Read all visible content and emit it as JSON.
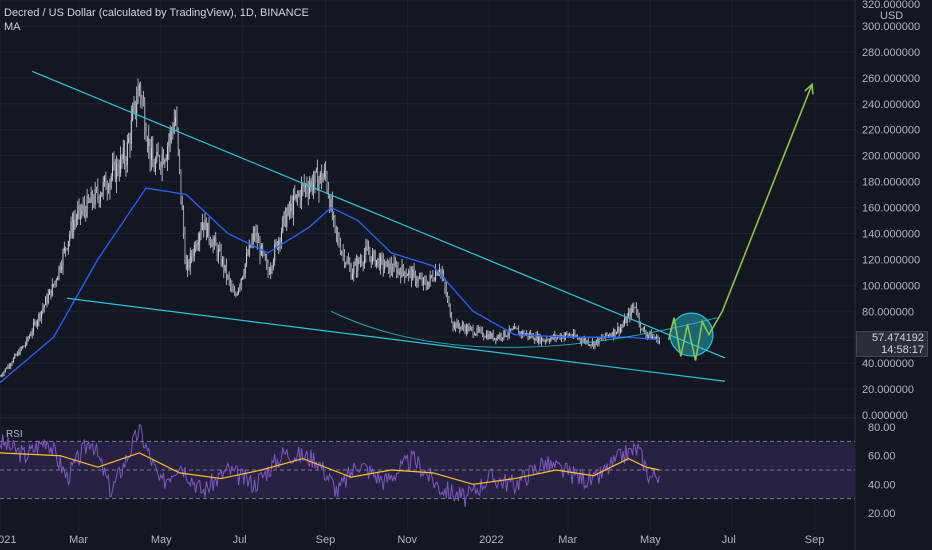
{
  "header": {
    "title": "Decred / US Dollar (calculated by TradingView), 1D, BINANCE",
    "indicator": "MA"
  },
  "price_axis": {
    "unit": "USD",
    "labels": [
      "320.000000",
      "300.000000",
      "280.000000",
      "260.000000",
      "240.000000",
      "220.000000",
      "200.000000",
      "180.000000",
      "160.000000",
      "140.000000",
      "120.000000",
      "100.000000",
      "80.000000",
      "60.000000",
      "40.000000",
      "20.000000",
      "0.000000"
    ]
  },
  "last_price": {
    "value": "57.474192",
    "countdown": "14:58:17"
  },
  "rsi": {
    "title": "RSI",
    "labels": [
      "80.00",
      "60.00",
      "40.00",
      "20.00"
    ]
  },
  "time_axis": [
    "2021",
    "Mar",
    "May",
    "Jul",
    "Sep",
    "Nov",
    "2022",
    "Mar",
    "May",
    "Jul",
    "Sep"
  ],
  "colors": {
    "background": "#131722",
    "candle": "#d1d4dc",
    "ma": "#2962ff",
    "trendline": "#26c6da",
    "projection": "#8bc34a",
    "rsi_line": "#7e57c2",
    "rsi_ma": "#fbc02d",
    "rsi_band": "#2a2346"
  },
  "chart_data": {
    "type": "candlestick",
    "title": "Decred / US Dollar (calculated by TradingView), 1D, BINANCE",
    "ylabel": "USD",
    "ylim": [
      0,
      320
    ],
    "x_range": [
      "2021-01-01",
      "2022-10-01"
    ],
    "price_path": [
      {
        "date": "2021-01-01",
        "close": 30
      },
      {
        "date": "2021-01-20",
        "close": 55
      },
      {
        "date": "2021-02-10",
        "close": 100
      },
      {
        "date": "2021-02-25",
        "close": 150
      },
      {
        "date": "2021-03-15",
        "close": 170
      },
      {
        "date": "2021-04-05",
        "close": 200
      },
      {
        "date": "2021-04-15",
        "close": 255
      },
      {
        "date": "2021-04-25",
        "close": 190
      },
      {
        "date": "2021-05-05",
        "close": 205
      },
      {
        "date": "2021-05-12",
        "close": 230
      },
      {
        "date": "2021-05-20",
        "close": 110
      },
      {
        "date": "2021-06-01",
        "close": 150
      },
      {
        "date": "2021-06-15",
        "close": 120
      },
      {
        "date": "2021-06-25",
        "close": 90
      },
      {
        "date": "2021-07-10",
        "close": 140
      },
      {
        "date": "2021-07-20",
        "close": 110
      },
      {
        "date": "2021-08-01",
        "close": 150
      },
      {
        "date": "2021-08-15",
        "close": 175
      },
      {
        "date": "2021-09-01",
        "close": 185
      },
      {
        "date": "2021-09-08",
        "close": 140
      },
      {
        "date": "2021-09-20",
        "close": 110
      },
      {
        "date": "2021-10-01",
        "close": 125
      },
      {
        "date": "2021-10-15",
        "close": 115
      },
      {
        "date": "2021-11-01",
        "close": 110
      },
      {
        "date": "2021-11-15",
        "close": 100
      },
      {
        "date": "2021-11-25",
        "close": 115
      },
      {
        "date": "2021-12-05",
        "close": 70
      },
      {
        "date": "2021-12-20",
        "close": 65
      },
      {
        "date": "2022-01-05",
        "close": 60
      },
      {
        "date": "2022-01-20",
        "close": 65
      },
      {
        "date": "2022-02-10",
        "close": 58
      },
      {
        "date": "2022-03-01",
        "close": 62
      },
      {
        "date": "2022-03-20",
        "close": 55
      },
      {
        "date": "2022-04-10",
        "close": 68
      },
      {
        "date": "2022-04-20",
        "close": 85
      },
      {
        "date": "2022-04-25",
        "close": 65
      },
      {
        "date": "2022-05-08",
        "close": 57.47
      }
    ],
    "moving_average": [
      {
        "date": "2021-01-01",
        "value": 25
      },
      {
        "date": "2021-02-10",
        "value": 60
      },
      {
        "date": "2021-03-15",
        "value": 120
      },
      {
        "date": "2021-04-20",
        "value": 175
      },
      {
        "date": "2021-05-20",
        "value": 170
      },
      {
        "date": "2021-06-20",
        "value": 140
      },
      {
        "date": "2021-07-20",
        "value": 125
      },
      {
        "date": "2021-08-20",
        "value": 145
      },
      {
        "date": "2021-09-05",
        "value": 160
      },
      {
        "date": "2021-09-25",
        "value": 150
      },
      {
        "date": "2021-10-20",
        "value": 125
      },
      {
        "date": "2021-11-20",
        "value": 115
      },
      {
        "date": "2021-12-20",
        "value": 80
      },
      {
        "date": "2022-01-20",
        "value": 62
      },
      {
        "date": "2022-03-01",
        "value": 60
      },
      {
        "date": "2022-04-15",
        "value": 60
      },
      {
        "date": "2022-05-08",
        "value": 58
      }
    ],
    "annotations": [
      {
        "type": "trendline",
        "from": {
          "date": "2021-01-25",
          "price": 265
        },
        "to": {
          "date": "2022-06-26",
          "price": 44
        }
      },
      {
        "type": "trendline",
        "from": {
          "date": "2021-02-20",
          "price": 90
        },
        "to": {
          "date": "2022-06-26",
          "price": 26
        }
      },
      {
        "type": "curve",
        "from": {
          "date": "2021-09-05",
          "price": 80
        },
        "via": {
          "date": "2021-12-20",
          "price": 50
        },
        "to": {
          "date": "2022-06-20",
          "price": 75
        }
      },
      {
        "type": "circle",
        "center": {
          "date": "2022-06-01",
          "price": 62
        },
        "radius_days": 16
      },
      {
        "type": "arrow",
        "points": [
          {
            "date": "2022-05-15",
            "price": 58
          },
          {
            "date": "2022-05-19",
            "price": 75
          },
          {
            "date": "2022-05-24",
            "price": 45
          },
          {
            "date": "2022-05-29",
            "price": 70
          },
          {
            "date": "2022-06-04",
            "price": 42
          },
          {
            "date": "2022-06-09",
            "price": 72
          },
          {
            "date": "2022-06-14",
            "price": 62
          },
          {
            "date": "2022-06-24",
            "price": 80
          },
          {
            "date": "2022-08-30",
            "price": 255
          }
        ]
      }
    ],
    "rsi": {
      "ylim": [
        15,
        85
      ],
      "levels": [
        70,
        50,
        30
      ],
      "path": [
        {
          "date": "2021-01-01",
          "value": 70
        },
        {
          "date": "2021-01-20",
          "value": 60
        },
        {
          "date": "2021-02-05",
          "value": 72
        },
        {
          "date": "2021-02-20",
          "value": 45
        },
        {
          "date": "2021-03-10",
          "value": 72
        },
        {
          "date": "2021-03-25",
          "value": 35
        },
        {
          "date": "2021-04-15",
          "value": 78
        },
        {
          "date": "2021-05-01",
          "value": 40
        },
        {
          "date": "2021-05-15",
          "value": 55
        },
        {
          "date": "2021-06-01",
          "value": 35
        },
        {
          "date": "2021-06-20",
          "value": 50
        },
        {
          "date": "2021-07-10",
          "value": 40
        },
        {
          "date": "2021-08-01",
          "value": 62
        },
        {
          "date": "2021-08-25",
          "value": 58
        },
        {
          "date": "2021-09-10",
          "value": 35
        },
        {
          "date": "2021-09-25",
          "value": 55
        },
        {
          "date": "2021-10-15",
          "value": 42
        },
        {
          "date": "2021-11-05",
          "value": 58
        },
        {
          "date": "2021-11-25",
          "value": 38
        },
        {
          "date": "2021-12-15",
          "value": 30
        },
        {
          "date": "2022-01-01",
          "value": 45
        },
        {
          "date": "2022-01-20",
          "value": 40
        },
        {
          "date": "2022-02-10",
          "value": 55
        },
        {
          "date": "2022-03-01",
          "value": 48
        },
        {
          "date": "2022-03-20",
          "value": 42
        },
        {
          "date": "2022-04-10",
          "value": 60
        },
        {
          "date": "2022-04-22",
          "value": 65
        },
        {
          "date": "2022-05-01",
          "value": 45
        },
        {
          "date": "2022-05-08",
          "value": 48
        }
      ],
      "ma_path": [
        {
          "date": "2021-01-01",
          "value": 62
        },
        {
          "date": "2021-02-15",
          "value": 60
        },
        {
          "date": "2021-03-15",
          "value": 52
        },
        {
          "date": "2021-04-15",
          "value": 62
        },
        {
          "date": "2021-05-15",
          "value": 48
        },
        {
          "date": "2021-06-15",
          "value": 44
        },
        {
          "date": "2021-07-15",
          "value": 50
        },
        {
          "date": "2021-08-15",
          "value": 58
        },
        {
          "date": "2021-09-20",
          "value": 45
        },
        {
          "date": "2021-10-20",
          "value": 50
        },
        {
          "date": "2021-11-20",
          "value": 48
        },
        {
          "date": "2021-12-20",
          "value": 40
        },
        {
          "date": "2022-01-20",
          "value": 44
        },
        {
          "date": "2022-02-20",
          "value": 50
        },
        {
          "date": "2022-03-20",
          "value": 46
        },
        {
          "date": "2022-04-15",
          "value": 58
        },
        {
          "date": "2022-04-28",
          "value": 52
        },
        {
          "date": "2022-05-08",
          "value": 50
        }
      ]
    }
  }
}
